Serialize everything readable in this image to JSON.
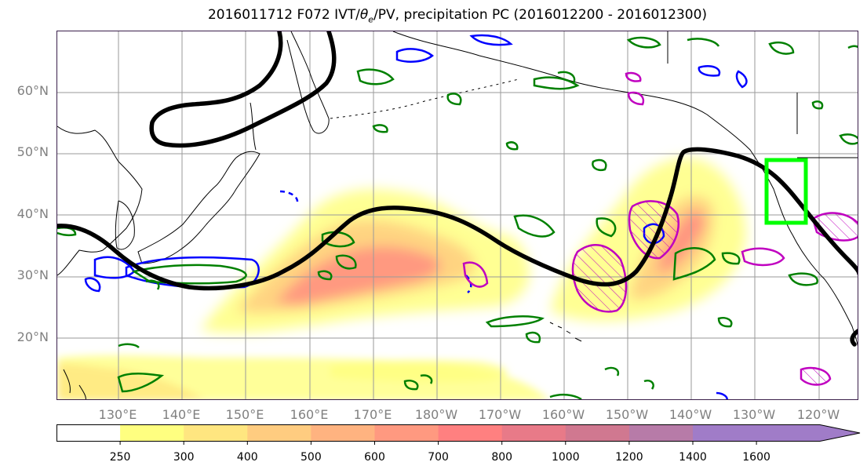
{
  "title_prefix": "2016011712 F072 IVT/",
  "title_theta": "θ",
  "title_sub": "e",
  "title_suffix": "/PV, precipitation PC (2016012200 - 2016012300)",
  "lat_labels": [
    "60°N",
    "50°N",
    "40°N",
    "30°N",
    "20°N"
  ],
  "lon_labels": [
    "130°E",
    "140°E",
    "150°E",
    "160°E",
    "170°E",
    "180°W",
    "170°W",
    "160°W",
    "150°W",
    "140°W",
    "130°W",
    "120°W"
  ],
  "colorbar": {
    "ticks": [
      "250",
      "300",
      "400",
      "500",
      "600",
      "700",
      "800",
      "1000",
      "1200",
      "1400",
      "1600"
    ],
    "colors": [
      "#ffffff",
      "#ffff80",
      "#ffe680",
      "#ffcc80",
      "#ffb380",
      "#ff9980",
      "#ff8080",
      "#e87a88",
      "#d07890",
      "#b77ba8",
      "#a07cc8"
    ]
  },
  "colors": {
    "ivt_contour": "#000000",
    "theta_e": "#008000",
    "pv_blue": "#0000ff",
    "pv_magenta": "#c000c0",
    "box": "#00ff00"
  }
}
